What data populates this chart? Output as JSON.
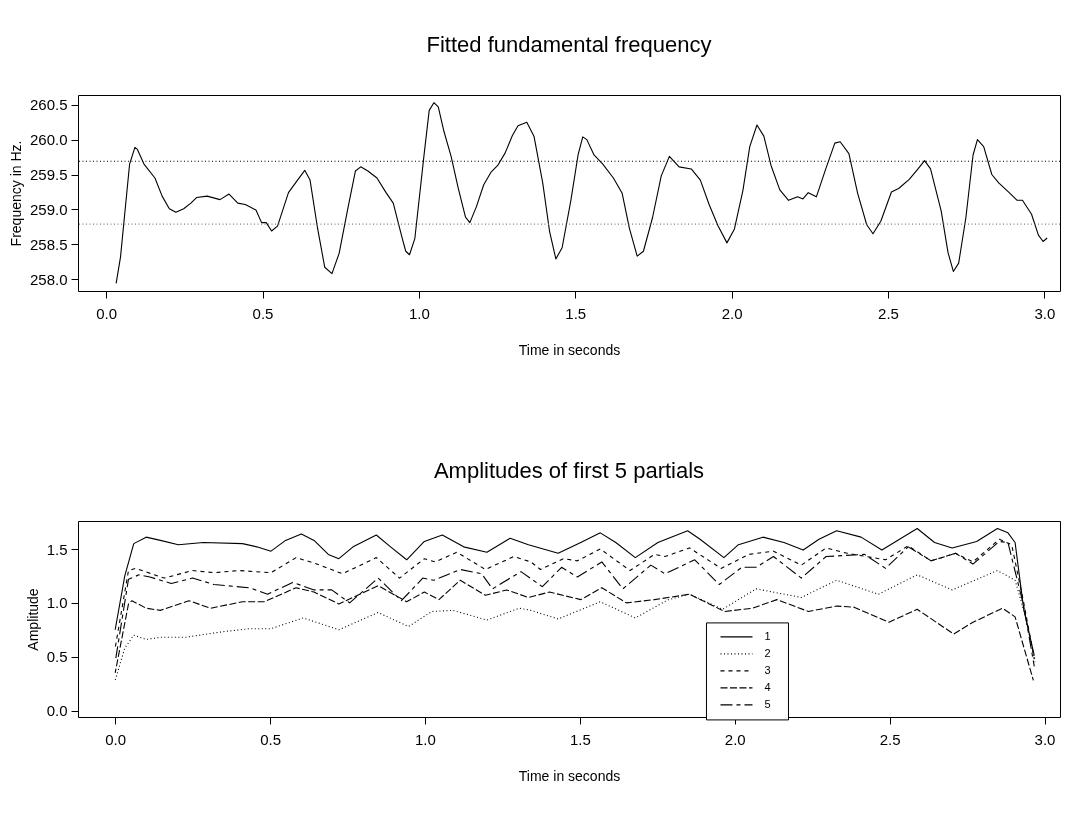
{
  "chart_data": [
    {
      "type": "line",
      "title": "Fitted fundamental frequency",
      "xlabel": "Time in seconds",
      "ylabel": "Frequency in Hz.",
      "xlim": [
        -0.09,
        3.05
      ],
      "xticks": [
        {
          "value": 0,
          "label": "0.0"
        },
        0.5,
        {
          "value": 1,
          "label": "1.0"
        },
        1.5,
        {
          "value": 2,
          "label": "2.0"
        },
        2.5,
        {
          "value": 3,
          "label": "3.0"
        }
      ],
      "ylim": [
        257.83,
        260.64
      ],
      "yticks": [
        {
          "value": 258,
          "label": "258.0"
        },
        258.5,
        {
          "value": 259,
          "label": "259.0"
        },
        259.5,
        {
          "value": 260,
          "label": "260.0"
        },
        260.5
      ],
      "grid": false,
      "legend": false,
      "line_style": "solid",
      "ref_lines": [
        {
          "axis": "y",
          "value": 259.69,
          "color": "#000000",
          "line_style": "dotted"
        },
        {
          "axis": "y",
          "value": 258.79,
          "color": "#808080",
          "line_style": "dotted"
        }
      ],
      "series": [
        {
          "color": "#000000",
          "x": [
            0.032,
            0.046,
            0.075,
            0.092,
            0.1,
            0.121,
            0.156,
            0.179,
            0.202,
            0.223,
            0.248,
            0.271,
            0.289,
            0.323,
            0.364,
            0.393,
            0.421,
            0.445,
            0.479,
            0.497,
            0.512,
            0.529,
            0.548,
            0.583,
            0.612,
            0.635,
            0.652,
            0.676,
            0.699,
            0.722,
            0.745,
            0.774,
            0.797,
            0.814,
            0.837,
            0.866,
            0.895,
            0.918,
            0.947,
            0.958,
            0.97,
            0.987,
            1.016,
            1.033,
            1.048,
            1.062,
            1.08,
            1.103,
            1.126,
            1.149,
            1.163,
            1.184,
            1.207,
            1.23,
            1.252,
            1.276,
            1.299,
            1.317,
            1.345,
            1.368,
            1.396,
            1.418,
            1.438,
            1.458,
            1.486,
            1.509,
            1.524,
            1.537,
            1.56,
            1.588,
            1.622,
            1.65,
            1.673,
            1.698,
            1.718,
            1.747,
            1.775,
            1.801,
            1.832,
            1.871,
            1.9,
            1.928,
            1.956,
            1.985,
            2.009,
            2.036,
            2.058,
            2.081,
            2.103,
            2.126,
            2.154,
            2.182,
            2.211,
            2.228,
            2.245,
            2.271,
            2.301,
            2.33,
            2.347,
            2.375,
            2.403,
            2.432,
            2.452,
            2.477,
            2.511,
            2.534,
            2.568,
            2.596,
            2.617,
            2.636,
            2.67,
            2.692,
            2.709,
            2.726,
            2.749,
            2.772,
            2.786,
            2.806,
            2.832,
            2.854,
            2.885,
            2.913,
            2.93,
            2.959,
            2.981,
            2.996,
            3.009
          ],
          "values": [
            257.94,
            258.32,
            259.65,
            259.89,
            259.86,
            259.65,
            259.45,
            259.19,
            259.01,
            258.96,
            259.01,
            259.09,
            259.17,
            259.19,
            259.14,
            259.22,
            259.09,
            259.07,
            258.99,
            258.81,
            258.81,
            258.69,
            258.76,
            259.24,
            259.42,
            259.56,
            259.42,
            258.73,
            258.17,
            258.08,
            258.37,
            259.04,
            259.55,
            259.61,
            259.55,
            259.45,
            259.24,
            259.09,
            258.58,
            258.4,
            258.35,
            258.58,
            259.76,
            260.42,
            260.53,
            260.47,
            260.12,
            259.76,
            259.3,
            258.89,
            258.81,
            259.04,
            259.35,
            259.53,
            259.63,
            259.81,
            260.06,
            260.2,
            260.25,
            260.05,
            259.38,
            258.68,
            258.29,
            258.45,
            259.13,
            259.78,
            260.04,
            260.0,
            259.78,
            259.65,
            259.45,
            259.23,
            258.73,
            258.33,
            258.4,
            258.88,
            259.48,
            259.76,
            259.61,
            259.58,
            259.42,
            259.07,
            258.77,
            258.52,
            258.72,
            259.27,
            259.9,
            260.21,
            260.05,
            259.63,
            259.28,
            259.13,
            259.18,
            259.15,
            259.24,
            259.18,
            259.58,
            259.95,
            259.97,
            259.8,
            259.23,
            258.78,
            258.65,
            258.83,
            259.25,
            259.3,
            259.43,
            259.58,
            259.7,
            259.58,
            258.98,
            258.38,
            258.11,
            258.23,
            258.88,
            259.78,
            260.0,
            259.9,
            259.5,
            259.38,
            259.25,
            259.13,
            259.13,
            258.93,
            258.63,
            258.54,
            258.59
          ]
        }
      ]
    },
    {
      "type": "line",
      "title": "Amplitudes of first 5 partials",
      "xlabel": "Time in seconds",
      "ylabel": "Amplitude",
      "xlim": [
        -0.12,
        3.05
      ],
      "xticks": [
        {
          "value": 0,
          "label": "0.0"
        },
        0.5,
        {
          "value": 1,
          "label": "1.0"
        },
        1.5,
        {
          "value": 2,
          "label": "2.0"
        },
        2.5,
        {
          "value": 3,
          "label": "3.0"
        }
      ],
      "ylim": [
        -0.06,
        1.76
      ],
      "yticks": [
        {
          "value": 0,
          "label": "0.0"
        },
        0.5,
        {
          "value": 1,
          "label": "1.0"
        },
        1.5
      ],
      "grid": false,
      "legend": "bottom",
      "series": [
        {
          "name": "1",
          "color": "#000000",
          "line_style": "solid",
          "x": [
            0,
            0.031,
            0.06,
            0.1,
            0.146,
            0.204,
            0.285,
            0.411,
            0.457,
            0.503,
            0.55,
            0.601,
            0.642,
            0.688,
            0.722,
            0.768,
            0.843,
            0.889,
            0.941,
            0.998,
            1.056,
            1.125,
            1.2,
            1.275,
            1.334,
            1.43,
            1.503,
            1.566,
            1.616,
            1.679,
            1.752,
            1.848,
            1.888,
            1.965,
            2.012,
            2.091,
            2.159,
            2.221,
            2.272,
            2.329,
            2.408,
            2.475,
            2.589,
            2.645,
            2.702,
            2.781,
            2.848,
            2.882,
            2.905,
            2.933,
            2.967
          ],
          "values": [
            0.75,
            1.25,
            1.55,
            1.61,
            1.58,
            1.54,
            1.56,
            1.55,
            1.52,
            1.48,
            1.58,
            1.64,
            1.58,
            1.45,
            1.41,
            1.52,
            1.63,
            1.52,
            1.4,
            1.57,
            1.63,
            1.52,
            1.47,
            1.6,
            1.54,
            1.46,
            1.56,
            1.65,
            1.56,
            1.42,
            1.56,
            1.67,
            1.59,
            1.42,
            1.54,
            1.61,
            1.56,
            1.49,
            1.59,
            1.67,
            1.61,
            1.49,
            1.69,
            1.56,
            1.51,
            1.57,
            1.69,
            1.65,
            1.56,
            0.94,
            0.51
          ]
        },
        {
          "name": "2",
          "color": "#000000",
          "line_style": "dotted",
          "x": [
            0,
            0.031,
            0.06,
            0.1,
            0.146,
            0.227,
            0.342,
            0.434,
            0.503,
            0.607,
            0.722,
            0.849,
            0.947,
            1.022,
            1.091,
            1.2,
            1.304,
            1.342,
            1.43,
            1.566,
            1.679,
            1.786,
            1.854,
            1.961,
            2.069,
            2.215,
            2.329,
            2.464,
            2.589,
            2.702,
            2.848,
            2.905,
            2.939,
            2.969
          ],
          "values": [
            0.28,
            0.58,
            0.7,
            0.66,
            0.68,
            0.68,
            0.73,
            0.76,
            0.76,
            0.86,
            0.75,
            0.91,
            0.78,
            0.92,
            0.93,
            0.84,
            0.95,
            0.93,
            0.85,
            1.01,
            0.86,
            1.03,
            1.08,
            0.94,
            1.13,
            1.05,
            1.21,
            1.08,
            1.26,
            1.12,
            1.3,
            1.21,
            0.87,
            0.45
          ]
        },
        {
          "name": "3",
          "color": "#000000",
          "line_style": "dashed",
          "x": [
            0,
            0.043,
            0.066,
            0.158,
            0.25,
            0.319,
            0.4,
            0.503,
            0.584,
            0.642,
            0.734,
            0.843,
            0.918,
            0.998,
            1.033,
            1.103,
            1.195,
            1.287,
            1.342,
            1.373,
            1.447,
            1.492,
            1.566,
            1.662,
            1.741,
            1.775,
            1.854,
            1.956,
            2.046,
            2.125,
            2.215,
            2.295,
            2.363,
            2.487,
            2.56,
            2.634,
            2.713,
            2.769,
            2.854,
            2.894,
            2.933,
            2.967
          ],
          "values": [
            0.58,
            1.3,
            1.32,
            1.23,
            1.3,
            1.28,
            1.3,
            1.28,
            1.42,
            1.37,
            1.27,
            1.42,
            1.23,
            1.41,
            1.38,
            1.47,
            1.31,
            1.43,
            1.38,
            1.31,
            1.41,
            1.39,
            1.5,
            1.3,
            1.45,
            1.43,
            1.51,
            1.32,
            1.45,
            1.48,
            1.35,
            1.51,
            1.46,
            1.4,
            1.53,
            1.39,
            1.46,
            1.38,
            1.59,
            1.54,
            1.0,
            0.48
          ]
        },
        {
          "name": "4",
          "color": "#000000",
          "line_style": "dashed",
          "x": [
            0,
            0.043,
            0.054,
            0.1,
            0.146,
            0.238,
            0.308,
            0.411,
            0.48,
            0.584,
            0.642,
            0.722,
            0.849,
            0.941,
            0.998,
            1.045,
            1.114,
            1.195,
            1.264,
            1.334,
            1.402,
            1.503,
            1.571,
            1.65,
            1.741,
            1.854,
            1.967,
            2.057,
            2.136,
            2.238,
            2.329,
            2.385,
            2.498,
            2.589,
            2.707,
            2.769,
            2.865,
            2.905,
            2.964
          ],
          "values": [
            0.35,
            0.99,
            1.02,
            0.95,
            0.93,
            1.02,
            0.95,
            1.01,
            1.01,
            1.14,
            1.1,
            0.99,
            1.16,
            1.01,
            1.1,
            1.03,
            1.21,
            1.07,
            1.12,
            1.05,
            1.1,
            1.03,
            1.14,
            1.0,
            1.03,
            1.08,
            0.92,
            0.95,
            1.03,
            0.92,
            0.97,
            0.96,
            0.82,
            0.94,
            0.71,
            0.82,
            0.95,
            0.87,
            0.28
          ]
        },
        {
          "name": "5",
          "color": "#000000",
          "line_style": "dashed",
          "x": [
            0,
            0.043,
            0.077,
            0.112,
            0.181,
            0.25,
            0.319,
            0.434,
            0.492,
            0.573,
            0.642,
            0.699,
            0.757,
            0.849,
            0.924,
            0.993,
            1.028,
            1.114,
            1.183,
            1.218,
            1.31,
            1.379,
            1.441,
            1.492,
            1.571,
            1.639,
            1.729,
            1.775,
            1.871,
            1.95,
            2.023,
            2.069,
            2.125,
            2.215,
            2.295,
            2.419,
            2.487,
            2.56,
            2.634,
            2.713,
            2.769,
            2.854,
            2.882,
            2.933,
            2.967
          ],
          "values": [
            0.45,
            1.22,
            1.26,
            1.24,
            1.18,
            1.23,
            1.17,
            1.14,
            1.08,
            1.19,
            1.12,
            1.12,
            1.0,
            1.23,
            1.02,
            1.23,
            1.21,
            1.31,
            1.27,
            1.13,
            1.29,
            1.15,
            1.33,
            1.24,
            1.38,
            1.13,
            1.35,
            1.27,
            1.4,
            1.17,
            1.33,
            1.33,
            1.43,
            1.23,
            1.43,
            1.45,
            1.32,
            1.52,
            1.39,
            1.46,
            1.36,
            1.57,
            1.56,
            0.97,
            0.41
          ]
        }
      ]
    }
  ]
}
